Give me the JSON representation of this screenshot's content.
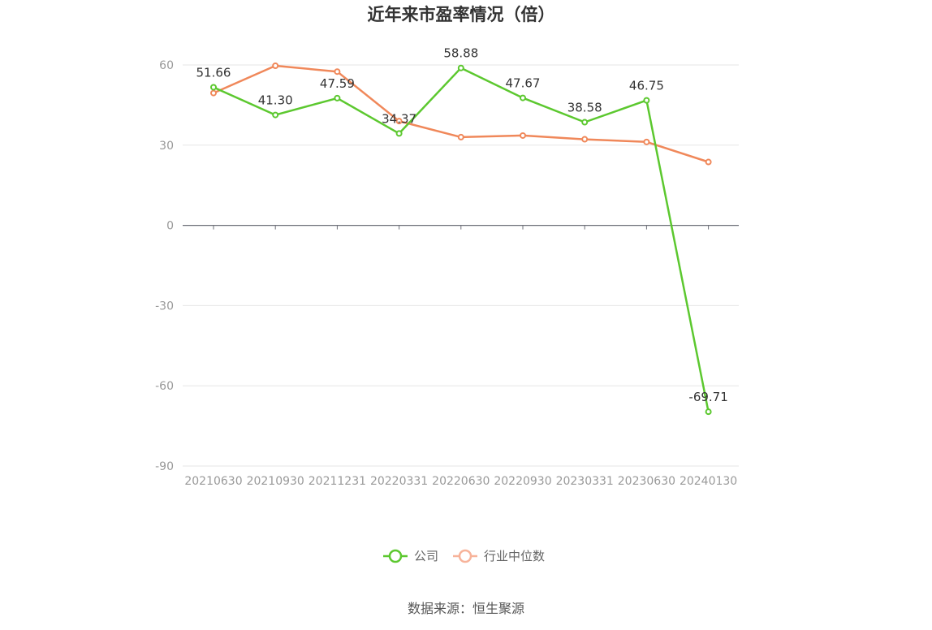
{
  "chart_data": {
    "type": "line",
    "title": "近年来市盈率情况（倍）",
    "categories": [
      "20210630",
      "20210930",
      "20211231",
      "20220331",
      "20220630",
      "20220930",
      "20230331",
      "20230630",
      "20240130"
    ],
    "series": [
      {
        "name": "公司",
        "color": "#5cc82f",
        "values": [
          51.66,
          41.3,
          47.59,
          34.37,
          58.88,
          47.67,
          38.58,
          46.75,
          -69.71
        ],
        "labels": [
          "51.66",
          "41.30",
          "47.59",
          "34.37",
          "58.88",
          "47.67",
          "38.58",
          "46.75",
          "-69.71"
        ]
      },
      {
        "name": "行业中位数",
        "color": "#f0885a",
        "values": [
          49.5,
          59.7,
          57.5,
          39.0,
          33.0,
          33.6,
          32.2,
          31.2,
          23.7
        ]
      }
    ],
    "ylim": [
      -90,
      60
    ],
    "yticks": [
      60,
      30,
      0,
      -30,
      -60,
      -90
    ],
    "ytick_labels": [
      "60",
      "30",
      "0",
      "-30",
      "-60",
      "-90"
    ],
    "grid": true,
    "legend": "bottom",
    "source": "数据来源：恒生聚源"
  }
}
